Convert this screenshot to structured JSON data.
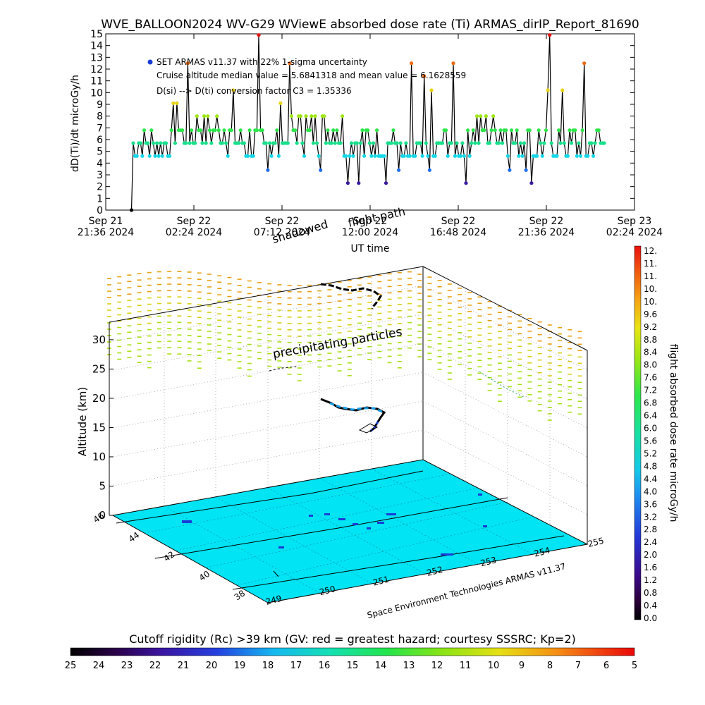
{
  "title": "WVE_BALLOON2024 WV-G29 WViewE absorbed dose rate (Ti) ARMAS_dirIP_Report_81690",
  "top_chart": {
    "ylabel": "dD(Ti)/dt microGy/h",
    "xlabel": "UT time",
    "yticks": [
      "0",
      "1",
      "2",
      "3",
      "4",
      "5",
      "6",
      "7",
      "8",
      "9",
      "10",
      "11",
      "12",
      "13",
      "14",
      "15"
    ],
    "xticks": [
      {
        "l1": "Sep 21",
        "l2": "21:36 2024"
      },
      {
        "l1": "Sep 22",
        "l2": "02:24 2024"
      },
      {
        "l1": "Sep 22",
        "l2": "07:12 2024"
      },
      {
        "l1": "Sep 22",
        "l2": "12:00 2024"
      },
      {
        "l1": "Sep 22",
        "l2": "16:48 2024"
      },
      {
        "l1": "Sep 22",
        "l2": "21:36 2024"
      },
      {
        "l1": "Sep 23",
        "l2": "02:24 2024"
      }
    ],
    "annotations": [
      "SET ARMAS v11.37 with 22% 1-sigma uncertainty",
      "Cruise altitude median value = 5.6841318 and mean value = 6.1628559",
      "D(si) --> D(ti) conversion factor C3 = 1.35336"
    ]
  },
  "overlay_labels": {
    "flight_path": "flight path",
    "shadowed": "shadowed",
    "precipitating": "precipitating particles"
  },
  "plot3d": {
    "zlabel": "Altitude (km)",
    "zticks": [
      "0",
      "5",
      "10",
      "15",
      "20",
      "25",
      "30"
    ],
    "lat_ticks": [
      "46",
      "44",
      "42",
      "40",
      "38"
    ],
    "lon_ticks": [
      "249",
      "250",
      "251",
      "252",
      "253",
      "254",
      "255"
    ],
    "credit": "Space Environment Technologies ARMAS v11.37"
  },
  "right_bar": {
    "label": "flight absorbed dose rate microGy/h",
    "ticks": [
      "12.",
      "11.",
      "11.",
      "10.",
      "10.",
      "9.6",
      "9.2",
      "8.8",
      "8.4",
      "8.0",
      "7.6",
      "7.2",
      "6.8",
      "6.4",
      "6.0",
      "5.6",
      "5.2",
      "4.8",
      "4.4",
      "4.0",
      "3.6",
      "3.2",
      "2.8",
      "2.4",
      "2.0",
      "1.6",
      "1.2",
      "0.8",
      "0.4",
      "0.0"
    ]
  },
  "bottom_bar": {
    "title": "Cutoff rigidity (Rc) >39 km (GV: red = greatest hazard; courtesy SSSRC; Kp=2)",
    "ticks": [
      "25",
      "24",
      "23",
      "22",
      "21",
      "20",
      "19",
      "18",
      "17",
      "16",
      "15",
      "14",
      "13",
      "12",
      "11",
      "10",
      "9",
      "8",
      "7",
      "6",
      "5"
    ]
  },
  "colors": {
    "plane": "#00e4f4",
    "legend_dot": "#1a3cd8",
    "axis": "#000000"
  },
  "chart_data": [
    {
      "type": "line",
      "title": "WVE_BALLOON2024 WV-G29 WViewE absorbed dose rate (Ti) ARMAS_dirIP_Report_81690",
      "xlabel": "UT time",
      "ylabel": "dD(Ti)/dt microGy/h",
      "ylim": [
        0,
        15
      ],
      "xlim": [
        "2024-09-21 21:36",
        "2024-09-23 02:24"
      ],
      "series": [
        {
          "x": [
            "2024-09-22 00:00",
            "2024-09-22 03:00",
            "2024-09-22 06:00",
            "2024-09-22 09:00",
            "2024-09-22 12:00",
            "2024-09-22 15:00",
            "2024-09-22 18:00",
            "2024-09-22 21:00",
            "2024-09-23 00:00"
          ],
          "values": [
            5.7,
            6.8,
            5.7,
            6.8,
            5.7,
            4.6,
            6.8,
            5.7,
            5.7
          ]
        }
      ],
      "levels": [
        0,
        2.3,
        3.4,
        4.6,
        5.7,
        6.8,
        8.0,
        9.1,
        10.2,
        11.4,
        12.5,
        14.9
      ],
      "median": 5.6841318,
      "mean": 6.1628559
    },
    {
      "type": "scatter",
      "zlabel": "Altitude (km)",
      "zlim": [
        0,
        33
      ],
      "lat_range": [
        37.5,
        46
      ],
      "lon_range": [
        249,
        255
      ],
      "credit": "Space Environment Technologies ARMAS v11.37"
    }
  ]
}
